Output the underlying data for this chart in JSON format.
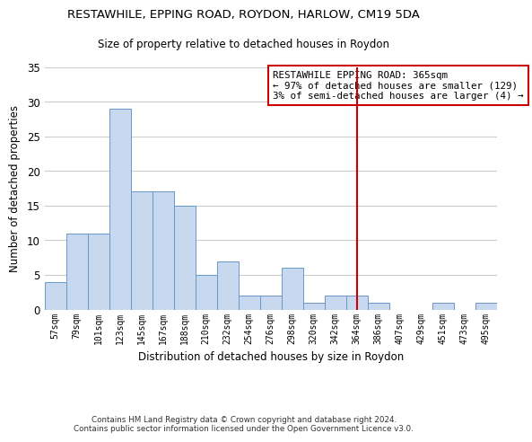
{
  "title": "RESTAWHILE, EPPING ROAD, ROYDON, HARLOW, CM19 5DA",
  "subtitle": "Size of property relative to detached houses in Roydon",
  "xlabel": "Distribution of detached houses by size in Roydon",
  "ylabel": "Number of detached properties",
  "bar_labels": [
    "57sqm",
    "79sqm",
    "101sqm",
    "123sqm",
    "145sqm",
    "167sqm",
    "188sqm",
    "210sqm",
    "232sqm",
    "254sqm",
    "276sqm",
    "298sqm",
    "320sqm",
    "342sqm",
    "364sqm",
    "386sqm",
    "407sqm",
    "429sqm",
    "451sqm",
    "473sqm",
    "495sqm"
  ],
  "bar_values": [
    4,
    11,
    11,
    29,
    17,
    17,
    15,
    5,
    7,
    2,
    2,
    6,
    1,
    2,
    2,
    1,
    0,
    0,
    1,
    0,
    1
  ],
  "bar_color": "#c8d9ef",
  "bar_edge_color": "#6699cc",
  "vline_x": 14,
  "vline_color": "#cc0000",
  "annotation_title": "RESTAWHILE EPPING ROAD: 365sqm",
  "annotation_line1": "← 97% of detached houses are smaller (129)",
  "annotation_line2": "3% of semi-detached houses are larger (4) →",
  "annotation_box_color": "#ffffff",
  "annotation_box_edge": "#cc0000",
  "ylim": [
    0,
    35
  ],
  "yticks": [
    0,
    5,
    10,
    15,
    20,
    25,
    30,
    35
  ],
  "footer1": "Contains HM Land Registry data © Crown copyright and database right 2024.",
  "footer2": "Contains public sector information licensed under the Open Government Licence v3.0.",
  "background_color": "#ffffff",
  "grid_color": "#cccccc"
}
